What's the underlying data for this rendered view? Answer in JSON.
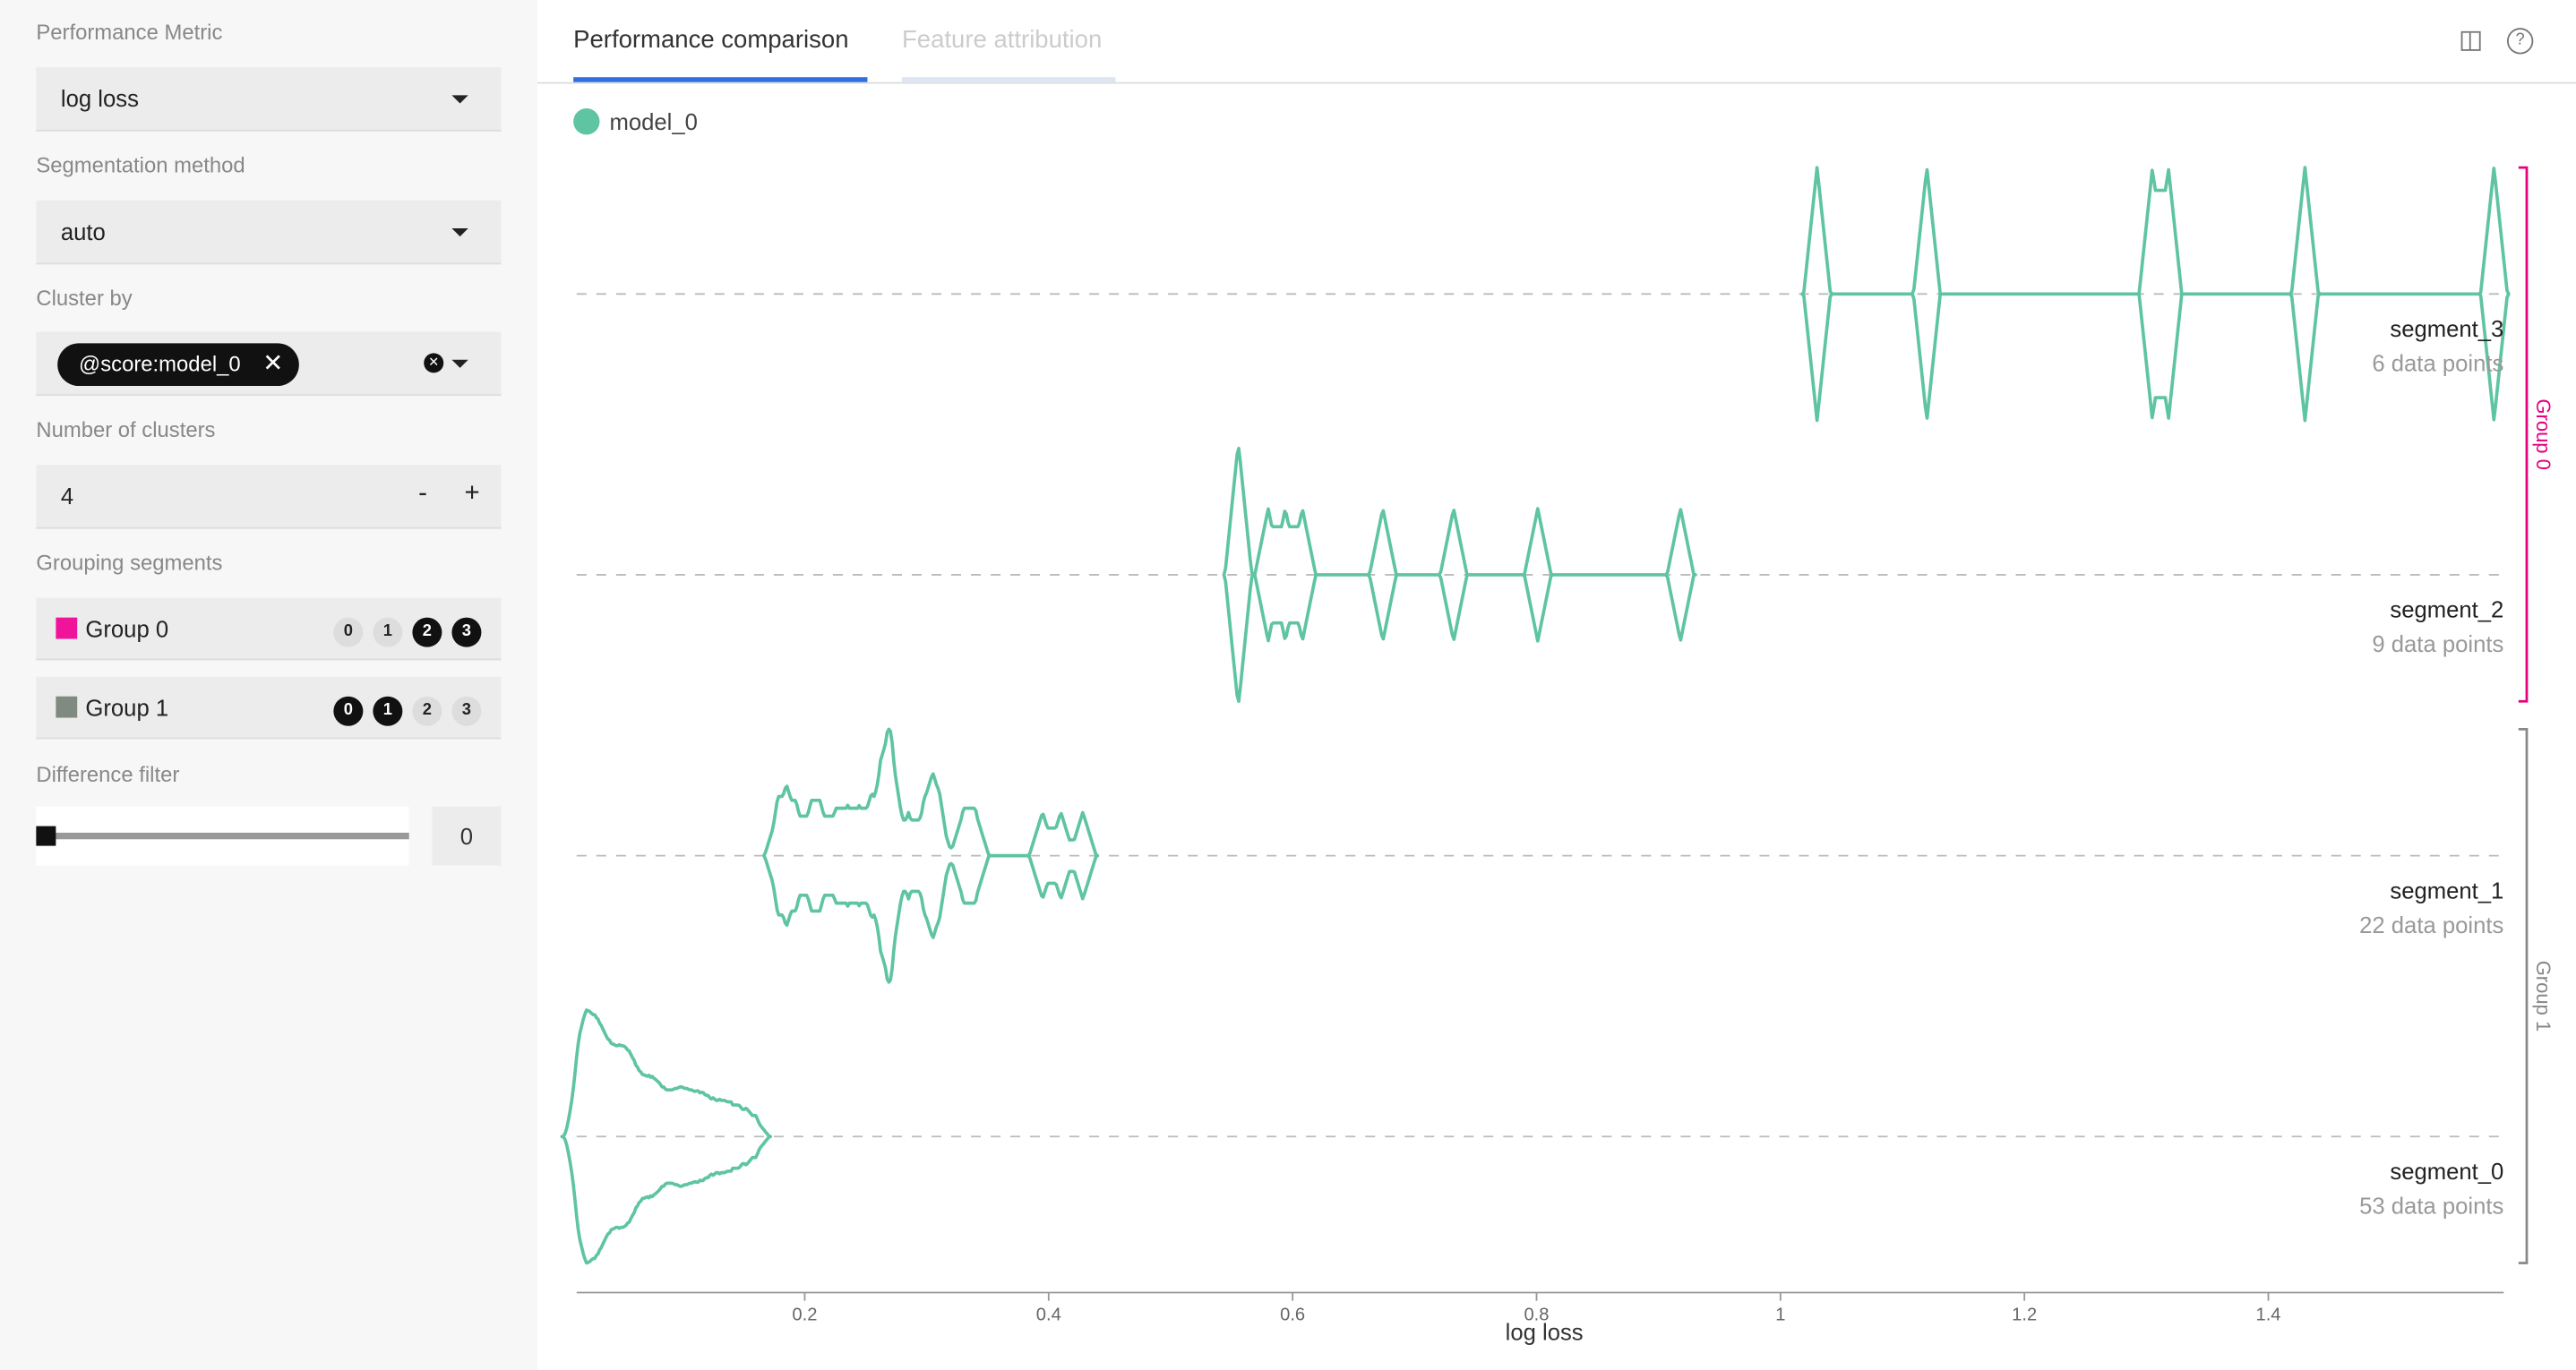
{
  "sidebar": {
    "performance_metric": {
      "label": "Performance Metric",
      "value": "log loss"
    },
    "segmentation_method": {
      "label": "Segmentation method",
      "value": "auto"
    },
    "cluster_by": {
      "label": "Cluster by",
      "chip": "@score:model_0"
    },
    "number_of_clusters": {
      "label": "Number of clusters",
      "value": "4",
      "minus": "-",
      "plus": "+"
    },
    "grouping_segments": {
      "label": "Grouping segments",
      "groups": [
        {
          "name": "Group 0",
          "color": "#f0149a",
          "chips": [
            "0",
            "1",
            "2",
            "3"
          ],
          "selected": [
            false,
            false,
            true,
            true
          ]
        },
        {
          "name": "Group 1",
          "color": "#7f8a80",
          "chips": [
            "0",
            "1",
            "2",
            "3"
          ],
          "selected": [
            true,
            true,
            false,
            false
          ]
        }
      ]
    },
    "difference_filter": {
      "label": "Difference filter",
      "value": "0"
    }
  },
  "tabs": [
    "Performance comparison",
    "Feature attribution"
  ],
  "chart_data": {
    "type": "violin",
    "x_label": "log loss",
    "series": [
      {
        "name": "model_0",
        "color": "#5fc4a2"
      }
    ],
    "xlim": [
      0.013,
      1.593
    ],
    "xticks": [
      0.2,
      0.4,
      0.6,
      0.8,
      1.0,
      1.2,
      1.4
    ],
    "groups": [
      {
        "name": "Group 0",
        "color": "#e6007e"
      },
      {
        "name": "Group 1",
        "color": "#888888"
      }
    ],
    "segments": [
      {
        "name": "segment_3",
        "count_label": "6 data points",
        "values": [
          1.03,
          1.12,
          1.305,
          1.318,
          1.43,
          1.585
        ]
      },
      {
        "name": "segment_2",
        "count_label": "9 data points",
        "values": [
          0.555,
          0.556,
          0.58,
          0.594,
          0.608,
          0.674,
          0.732,
          0.801,
          0.918
        ]
      },
      {
        "name": "segment_1",
        "count_label": "22 data points",
        "values": [
          0.178,
          0.185,
          0.193,
          0.205,
          0.213,
          0.225,
          0.235,
          0.245,
          0.255,
          0.262,
          0.268,
          0.27,
          0.272,
          0.285,
          0.298,
          0.305,
          0.31,
          0.33,
          0.34,
          0.395,
          0.41,
          0.428
        ]
      },
      {
        "name": "segment_0",
        "count_label": "53 data points",
        "values": [
          0.013,
          0.014,
          0.015,
          0.016,
          0.018,
          0.02,
          0.021,
          0.022,
          0.024,
          0.025,
          0.027,
          0.028,
          0.03,
          0.031,
          0.033,
          0.034,
          0.036,
          0.038,
          0.04,
          0.042,
          0.044,
          0.046,
          0.048,
          0.05,
          0.052,
          0.054,
          0.056,
          0.058,
          0.06,
          0.063,
          0.066,
          0.069,
          0.072,
          0.075,
          0.078,
          0.081,
          0.085,
          0.089,
          0.093,
          0.097,
          0.1,
          0.104,
          0.108,
          0.112,
          0.116,
          0.12,
          0.125,
          0.13,
          0.135,
          0.14,
          0.146,
          0.152,
          0.16
        ]
      }
    ]
  }
}
